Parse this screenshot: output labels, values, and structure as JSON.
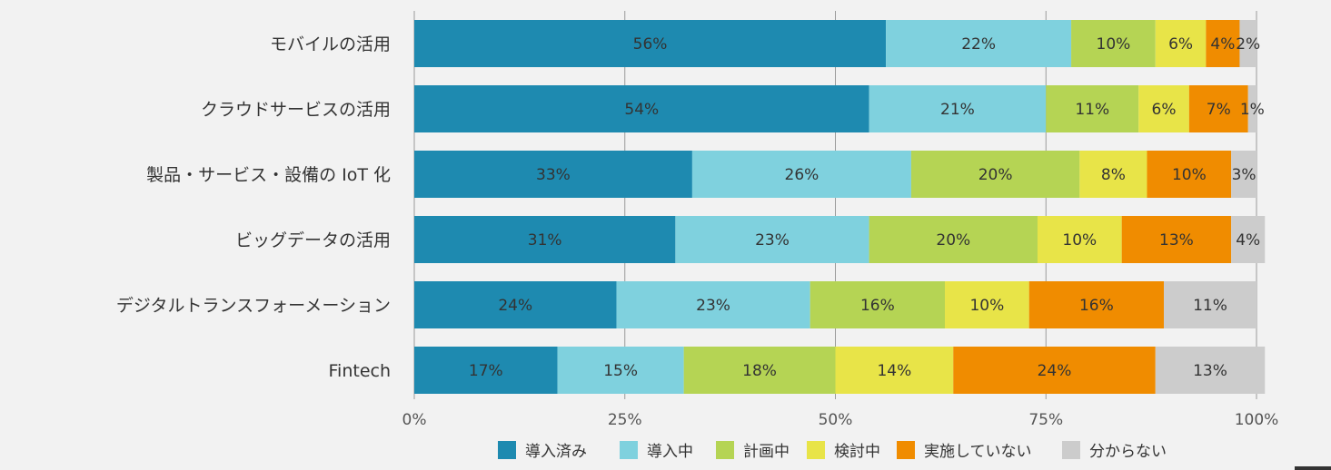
{
  "chart_data": {
    "type": "bar",
    "orientation": "horizontal",
    "stacked": true,
    "normalized": true,
    "categories": [
      "モバイルの活用",
      "クラウドサービスの活用",
      "製品・サービス・設備の IoT 化",
      "ビッグデータの活用",
      "デジタルトランスフォーメーション",
      "Fintech"
    ],
    "series": [
      {
        "name": "導入済み",
        "color": "#1e8ab0",
        "values": [
          56,
          54,
          33,
          31,
          24,
          17
        ]
      },
      {
        "name": "導入中",
        "color": "#7fd1de",
        "values": [
          22,
          21,
          26,
          23,
          23,
          15
        ]
      },
      {
        "name": "計画中",
        "color": "#b5d454",
        "values": [
          10,
          11,
          20,
          20,
          16,
          18
        ]
      },
      {
        "name": "検討中",
        "color": "#e8e448",
        "values": [
          6,
          6,
          8,
          10,
          10,
          14
        ]
      },
      {
        "name": "実施していない",
        "color": "#f08c00",
        "values": [
          4,
          7,
          10,
          13,
          16,
          24
        ]
      },
      {
        "name": "分からない",
        "color": "#cccccc",
        "values": [
          2,
          1,
          3,
          4,
          11,
          13
        ]
      }
    ],
    "xticks": [
      "0%",
      "25%",
      "50%",
      "75%",
      "100%"
    ],
    "xlim": [
      0,
      100
    ],
    "grid": true,
    "legend": "bottom",
    "title": "",
    "xlabel": "",
    "ylabel": ""
  }
}
